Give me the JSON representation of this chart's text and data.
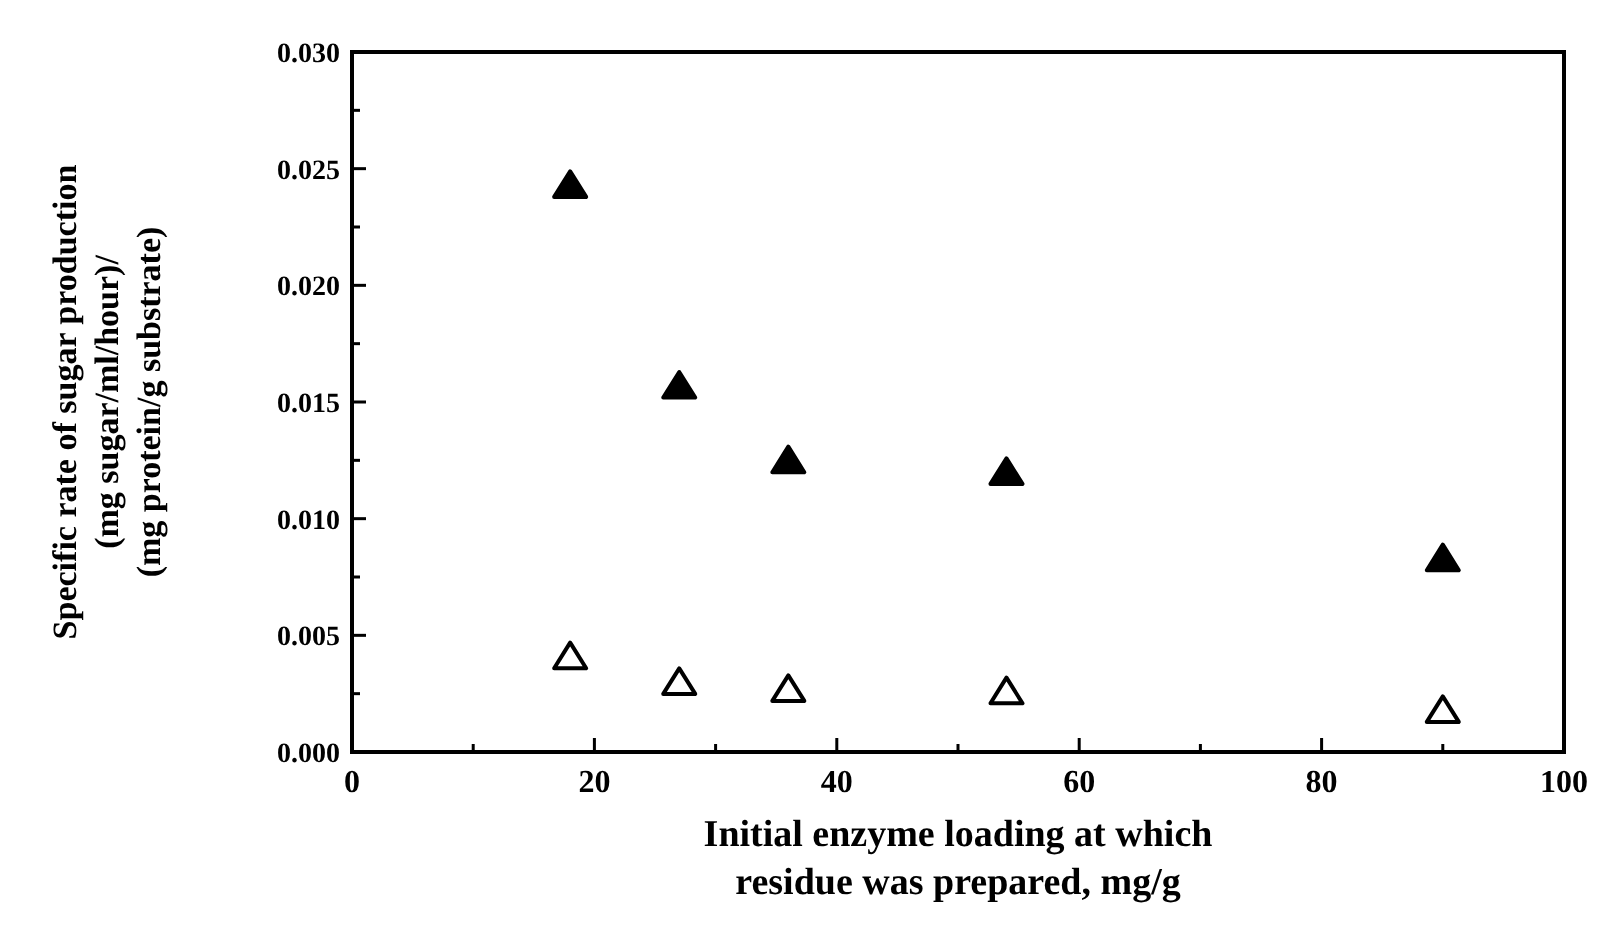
{
  "chart_data": {
    "type": "scatter",
    "xlabel": "Initial enzyme loading at which\nresidue was prepared, mg/g",
    "ylabel": "Specific rate of sugar production\n(mg sugar/ml/hour)/\n(mg protein/g substrate)",
    "x": [
      18,
      27,
      36,
      54,
      90
    ],
    "series": [
      {
        "color": "#000000",
        "marker": "triangle",
        "values": [
          0.0242,
          0.0156,
          0.0124,
          0.0119,
          0.0082
        ]
      },
      {
        "color": "#ffffff",
        "marker": "triangle",
        "values": [
          0.004,
          0.0029,
          0.0026,
          0.0025,
          0.0017
        ]
      }
    ],
    "xlim": [
      0,
      100
    ],
    "xticks": [
      0,
      20,
      40,
      60,
      80,
      100,
      {
        "value": 10,
        "label": null
      },
      {
        "value": 30,
        "label": null
      },
      {
        "value": 50,
        "label": null
      },
      {
        "value": 70,
        "label": null
      },
      {
        "value": 90,
        "label": null
      }
    ],
    "ylim": [
      0,
      0.03
    ],
    "yticks": [
      {
        "value": 0,
        "label": "0.000"
      },
      {
        "value": 0.005,
        "label": "0.005"
      },
      {
        "value": 0.01,
        "label": "0.010"
      },
      {
        "value": 0.015,
        "label": "0.015"
      },
      {
        "value": 0.02,
        "label": "0.020"
      },
      {
        "value": 0.025,
        "label": "0.025"
      },
      {
        "value": 0.03,
        "label": "0.030"
      },
      {
        "value": 0.0025,
        "label": null
      },
      {
        "value": 0.0075,
        "label": null
      },
      {
        "value": 0.0125,
        "label": null
      },
      {
        "value": 0.0175,
        "label": null
      },
      {
        "value": 0.0225,
        "label": null
      },
      {
        "value": 0.0275,
        "label": null
      }
    ],
    "grid": false
  }
}
